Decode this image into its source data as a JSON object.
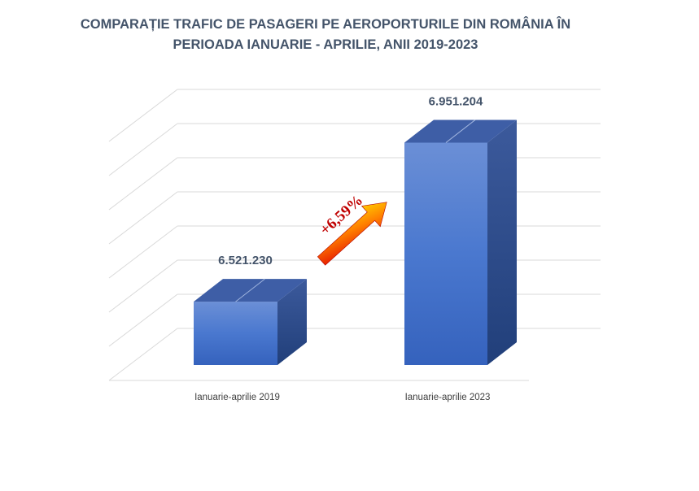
{
  "title": {
    "line1": "COMPARAȚIE TRAFIC DE PASAGERI PE AEROPORTURILE DIN ROMÂNIA ÎN",
    "line2": "PERIOADA IANUARIE - APRILIE, ANII 2019-2023"
  },
  "annotation": {
    "change_label": "+6,59%",
    "arrow_color_start": "#ffff00",
    "arrow_color_end": "#d40000",
    "text_color": "#c00000"
  },
  "colors": {
    "bar_front": "#4472c4",
    "bar_side": "#2f4e8f",
    "bar_top": "#3b5fa8",
    "title": "#44546a",
    "gridlines": "#d9d9d9"
  },
  "chart_data": {
    "type": "bar",
    "style": "3d",
    "categories": [
      "Ianuarie-aprilie 2019",
      "Ianuarie-aprilie 2023"
    ],
    "values": [
      6521230,
      6951204
    ],
    "data_labels": [
      "6.521.230",
      "6.951.204"
    ],
    "title": "COMPARAȚIE TRAFIC DE PASAGERI PE AEROPORTURILE DIN ROMÂNIA ÎN PERIOADA IANUARIE - APRILIE, ANII 2019-2023",
    "xlabel": "",
    "ylabel": "",
    "ylim": [
      6000000,
      7000000
    ],
    "grid": true,
    "legend": "none"
  }
}
